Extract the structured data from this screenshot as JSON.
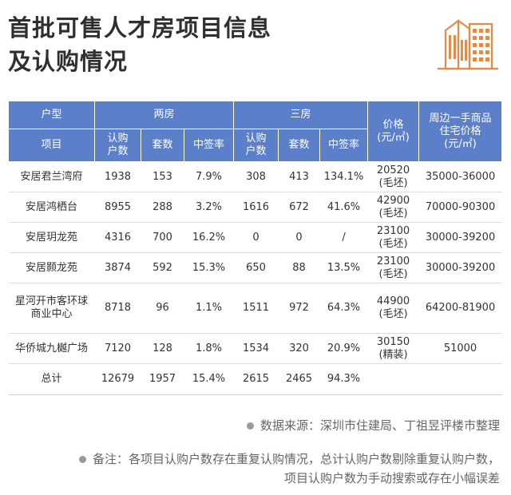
{
  "title": {
    "line1": "首批可售人才房项目信息",
    "line2": "及认购情况"
  },
  "logo_icon": "buildings-icon",
  "accent_color": "#5b80c9",
  "logo_color": "#e38c4a",
  "table": {
    "header_row1": {
      "type_label": "户型",
      "two_room": "两房",
      "three_room": "三房",
      "price": "价格\n(元/㎡)",
      "nearby_price": "周边一手商品\n住宅价格\n(元/㎡)"
    },
    "header_row2": {
      "project": "项目",
      "subscribers": "认购\n户数",
      "units": "套数",
      "win_rate": "中签率"
    },
    "rows": [
      {
        "name": "安居君兰湾府",
        "r2_subs": "1938",
        "r2_units": "153",
        "r2_rate": "7.9%",
        "r3_subs": "308",
        "r3_units": "413",
        "r3_rate": "134.1%",
        "price": "20520\n(毛坯)",
        "nearby": "35000-36000"
      },
      {
        "name": "安居鸿栖台",
        "r2_subs": "8955",
        "r2_units": "288",
        "r2_rate": "3.2%",
        "r3_subs": "1616",
        "r3_units": "672",
        "r3_rate": "41.6%",
        "price": "42900\n(毛坯)",
        "nearby": "70000-90300"
      },
      {
        "name": "安居玥龙苑",
        "r2_subs": "4316",
        "r2_units": "700",
        "r2_rate": "16.2%",
        "r3_subs": "0",
        "r3_units": "0",
        "r3_rate": "/",
        "price": "23100\n(毛坯)",
        "nearby": "30000-39200"
      },
      {
        "name": "安居颢龙苑",
        "r2_subs": "3874",
        "r2_units": "592",
        "r2_rate": "15.3%",
        "r3_subs": "650",
        "r3_units": "88",
        "r3_rate": "13.5%",
        "price": "23100\n(毛坯)",
        "nearby": "30000-39200"
      },
      {
        "name": "星河开市客环球商业中心",
        "r2_subs": "8718",
        "r2_units": "96",
        "r2_rate": "1.1%",
        "r3_subs": "1511",
        "r3_units": "972",
        "r3_rate": "64.3%",
        "price": "44900\n(毛坯)",
        "nearby": "64200-81900"
      },
      {
        "name": "华侨城九樾广场",
        "r2_subs": "7120",
        "r2_units": "128",
        "r2_rate": "1.8%",
        "r3_subs": "1534",
        "r3_units": "320",
        "r3_rate": "20.9%",
        "price": "30150\n(精装)",
        "nearby": "51000"
      }
    ],
    "total": {
      "name": "总计",
      "r2_subs": "12679",
      "r2_units": "1957",
      "r2_rate": "15.4%",
      "r3_subs": "2615",
      "r3_units": "2465",
      "r3_rate": "94.3%",
      "price": "",
      "nearby": ""
    }
  },
  "footer": {
    "source": "数据来源：深圳市住建局、丁祖昱评楼市整理",
    "note_line1": "备注：各项目认购户数存在重复认购情况，总计认购户数剔除重复认购户数，",
    "note_line2": "项目认购户数为手动搜索或存在小幅误差"
  }
}
